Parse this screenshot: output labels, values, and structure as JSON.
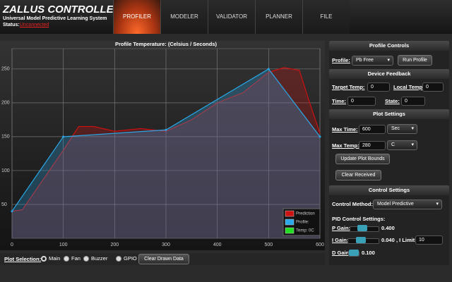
{
  "header": {
    "title": "ZALLUS CONTROLLER",
    "subtitle": "Universal Model Predictive Learning System",
    "status_label": "Status:",
    "status": "Unconnected"
  },
  "tabs": [
    "PROFILER",
    "MODELER",
    "VALIDATOR",
    "PLANNER",
    "FILE"
  ],
  "active_tab": 0,
  "chart_data": {
    "type": "line",
    "title": "Profile Temperature: (Celsius / Seconds)",
    "series": [
      {
        "name": "Prediction",
        "color": "#cc1111",
        "x": [
          0,
          20,
          50,
          100,
          130,
          160,
          200,
          250,
          300,
          350,
          400,
          450,
          500,
          530,
          560,
          580,
          600
        ],
        "values": [
          40,
          42,
          75,
          130,
          165,
          165,
          158,
          162,
          158,
          175,
          200,
          215,
          245,
          252,
          248,
          200,
          155
        ]
      },
      {
        "name": "Profile:",
        "color": "#2aa8e8",
        "x": [
          0,
          100,
          300,
          500,
          600
        ],
        "values": [
          40,
          150,
          160,
          250,
          150
        ]
      },
      {
        "name": "Temp: 0C",
        "color": "#22dd22",
        "x": [],
        "values": []
      }
    ],
    "xlim": [
      0,
      600
    ],
    "xticks": [
      0,
      100,
      200,
      300,
      400,
      500,
      600
    ],
    "ylim": [
      0,
      280
    ],
    "yticks": [
      50,
      100,
      150,
      200,
      250
    ],
    "grid": true,
    "legend": "lower right"
  },
  "plot_selection": {
    "label": "Plot Selection:",
    "options": [
      "Main",
      "Fan",
      "Buzzer",
      "GPIO"
    ],
    "selected": 0,
    "button": "Clear Drawn Data"
  },
  "panel": {
    "profile_controls": {
      "title": "Profile Controls",
      "profile_label": "Profile:",
      "profile_value": "Pb Free",
      "button": "Run Profile"
    },
    "device_feedback": {
      "title": "Device Feedback",
      "target_temp_label": "Target Temp:",
      "target_temp": 0,
      "local_temp_label": "Local Temp:",
      "local_temp": 0,
      "time_label": "Time:",
      "time": 0,
      "state_label": "State:",
      "state": 0
    },
    "plot_settings": {
      "title": "Plot Settings",
      "max_time_label": "Max Time:",
      "max_time": 600,
      "time_unit": "Sec",
      "max_temp_label": "Max Temp:",
      "max_temp": 280,
      "temp_unit": "C",
      "update_button": "Update Plot Bounds",
      "clear_button": "Clear Received"
    },
    "control_settings": {
      "title": "Control Settings",
      "method_label": "Control Method:",
      "method": "Model Predictive",
      "pid_title": "PID Control Settings:",
      "p_gain_label": "P Gain:",
      "p_gain": "0.400",
      "i_gain_label": "I Gain:",
      "i_gain": "0.040",
      "i_limit_label": ", I Limit",
      "i_limit": 10,
      "d_gain_label": "D Gain:",
      "d_gain": "0.100"
    }
  }
}
